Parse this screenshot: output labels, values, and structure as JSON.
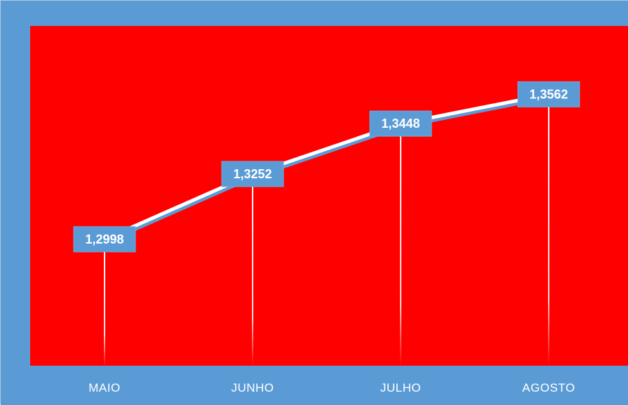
{
  "colors": {
    "frame": "#5b9bd5",
    "plot_area": "#ff0000",
    "line": "#ffffff",
    "line_shadow": "#5b9bd5",
    "label_box": "#5b9bd5",
    "text": "#ffffff"
  },
  "chart_data": {
    "type": "line",
    "title": "",
    "xlabel": "",
    "ylabel": "",
    "categories": [
      "MAIO",
      "JUNHO",
      "JULHO",
      "AGOSTO"
    ],
    "series": [
      {
        "values": [
          1.2998,
          1.3252,
          1.3448,
          1.3562
        ]
      }
    ],
    "data_labels": [
      "1,2998",
      "1,3252",
      "1,3448",
      "1,3562"
    ],
    "ylim": [
      1.2506,
      1.3828
    ],
    "grid": false,
    "legend": "none",
    "drop_lines": true
  }
}
